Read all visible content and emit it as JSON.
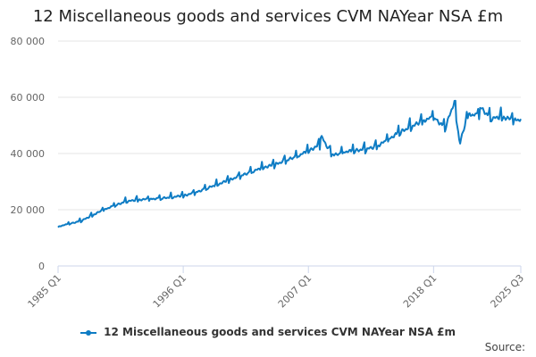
{
  "chart_data": {
    "type": "line",
    "title": "12 Miscellaneous goods and services CVM NAYear NSA £m",
    "xlabel": "",
    "ylabel": "",
    "ylim": [
      0,
      80000
    ],
    "yticks": [
      0,
      20000,
      40000,
      60000,
      80000
    ],
    "ytick_labels": [
      "0",
      "20 000",
      "40 000",
      "60 000",
      "80 000"
    ],
    "xtick_labels": [
      "1985 Q1",
      "1996 Q1",
      "2007 Q1",
      "2018 Q1",
      "2025 Q3"
    ],
    "x_start": "1985 Q1",
    "x_end": "2025 Q3",
    "grid": true,
    "legend_position": "bottom",
    "series": [
      {
        "name": "12 Miscellaneous goods and services CVM NAYear NSA £m",
        "color": "#0e7cc4",
        "x_start_year": 1985,
        "points_per_year": 12,
        "annual_anchors": [
          14000,
          15000,
          16000,
          18000,
          20000,
          21500,
          23000,
          23500,
          23800,
          24000,
          24500,
          25000,
          26000,
          27500,
          29000,
          30500,
          32000,
          33500,
          35000,
          36000,
          37500,
          39000,
          41000,
          43000,
          40000,
          40500,
          41000,
          41500,
          42500,
          45000,
          47500,
          49500,
          51500,
          53000,
          49000,
          53000,
          54000,
          53500,
          52500,
          53000,
          52000
        ],
        "events": [
          {
            "year": 2008.0,
            "value": 47000
          },
          {
            "year": 2009.5,
            "value": 39500
          },
          {
            "year": 2019.8,
            "value": 58000
          },
          {
            "year": 2020.3,
            "value": 43500
          },
          {
            "year": 2020.9,
            "value": 52000
          },
          {
            "year": 2022.0,
            "value": 57000
          }
        ]
      }
    ]
  },
  "legend": {
    "label": "12 Miscellaneous goods and services CVM NAYear NSA £m"
  },
  "footer": {
    "source_label": "Source:"
  }
}
